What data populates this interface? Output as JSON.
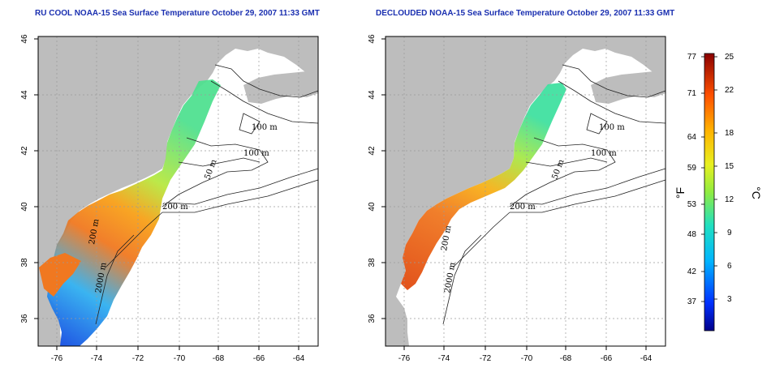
{
  "titles": {
    "left": "RU COOL NOAA-15 Sea Surface Temperature October 29, 2007 11:33 GMT",
    "right": "DECLOUDED NOAA-15 Sea Surface Temperature October 29, 2007 11:33 GMT"
  },
  "map": {
    "lon_ticks": [
      "-76",
      "-74",
      "-72",
      "-70",
      "-68",
      "-66",
      "-64"
    ],
    "lat_ticks": [
      "46",
      "44",
      "42",
      "40",
      "38",
      "36"
    ],
    "contour_labels": {
      "left": [
        "100 m",
        "100 m",
        "50 m",
        "200 m",
        "200 m",
        "2000 m"
      ],
      "right": [
        "100 m",
        "100 m",
        "50 m",
        "200 m",
        "200 m",
        "2000 m"
      ]
    },
    "colors": {
      "land": "#bdbdbd",
      "ocean": "#ffffff",
      "grid": "#9a9a9a",
      "contour": "#222222"
    }
  },
  "colorbar": {
    "fahrenheit_labels": [
      "77",
      "71",
      "64",
      "59",
      "53",
      "48",
      "42",
      "37"
    ],
    "celsius_labels": [
      "25",
      "22",
      "18",
      "15",
      "12",
      "9",
      "6",
      "3"
    ],
    "fahrenheit_unit": "°F",
    "celsius_unit": "°C"
  }
}
